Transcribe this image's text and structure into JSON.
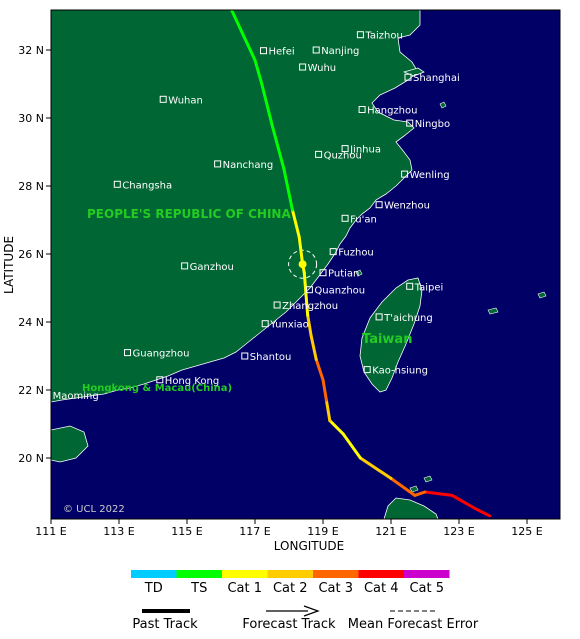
{
  "map": {
    "x_ticks": [
      "111 E",
      "113 E",
      "115 E",
      "117 E",
      "119 E",
      "121 E",
      "123 E",
      "125 E"
    ],
    "y_ticks": [
      "32 N",
      "30 N",
      "28 N",
      "26 N",
      "24 N",
      "22 N",
      "20 N"
    ],
    "x_axis_title": "LONGITUDE",
    "y_axis_title": "LATITUDE",
    "country_china": "PEOPLE'S REPUBLIC OF CHINA",
    "taiwan": "Taiwan",
    "hk_macau": "Hongkong & Macau(China)",
    "copyright": "© UCL 2022",
    "cities": [
      {
        "name": "Taizhou",
        "lon": 120.1,
        "lat": 32.45
      },
      {
        "name": "Hefei",
        "lon": 117.25,
        "lat": 31.98
      },
      {
        "name": "Nanjing",
        "lon": 118.8,
        "lat": 32.0
      },
      {
        "name": "Wuhu",
        "lon": 118.4,
        "lat": 31.5
      },
      {
        "name": "Shanghai",
        "lon": 121.5,
        "lat": 31.2
      },
      {
        "name": "Wuhan",
        "lon": 114.3,
        "lat": 30.55
      },
      {
        "name": "Hangzhou",
        "lon": 120.15,
        "lat": 30.25
      },
      {
        "name": "Ningbo",
        "lon": 121.55,
        "lat": 29.85
      },
      {
        "name": "Jinhua",
        "lon": 119.65,
        "lat": 29.1
      },
      {
        "name": "Quzhou",
        "lon": 118.87,
        "lat": 28.93
      },
      {
        "name": "Nanchang",
        "lon": 115.9,
        "lat": 28.65
      },
      {
        "name": "Wenling",
        "lon": 121.4,
        "lat": 28.35
      },
      {
        "name": "Changsha",
        "lon": 112.95,
        "lat": 28.05
      },
      {
        "name": "Wenzhou",
        "lon": 120.65,
        "lat": 27.45
      },
      {
        "name": "Fu'an",
        "lon": 119.65,
        "lat": 27.05
      },
      {
        "name": "Fuzhou",
        "lon": 119.3,
        "lat": 26.07
      },
      {
        "name": "Putian",
        "lon": 119.0,
        "lat": 25.45
      },
      {
        "name": "Ganzhou",
        "lon": 114.93,
        "lat": 25.65
      },
      {
        "name": "Taipei",
        "lon": 121.55,
        "lat": 25.05
      },
      {
        "name": "Quanzhou",
        "lon": 118.6,
        "lat": 24.95
      },
      {
        "name": "Zhangzhou",
        "lon": 117.65,
        "lat": 24.5
      },
      {
        "name": "T'aichung",
        "lon": 120.65,
        "lat": 24.15
      },
      {
        "name": "Yunxiao",
        "lon": 117.3,
        "lat": 23.95
      },
      {
        "name": "Guangzhou",
        "lon": 113.25,
        "lat": 23.1
      },
      {
        "name": "Shantou",
        "lon": 116.7,
        "lat": 23.0
      },
      {
        "name": "Kao-hsiung",
        "lon": 120.3,
        "lat": 22.6
      },
      {
        "name": "Hong Kong",
        "lon": 114.2,
        "lat": 22.3
      },
      {
        "name": "Maoming",
        "lon": 110.9,
        "lat": 21.85
      }
    ]
  },
  "track": {
    "forecast_points": [
      {
        "lon": 123.9,
        "lat": 18.3,
        "cat": "Cat 4"
      },
      {
        "lon": 123.5,
        "lat": 18.5,
        "cat": "Cat 4"
      },
      {
        "lon": 122.8,
        "lat": 18.9,
        "cat": "Cat 4"
      },
      {
        "lon": 122.0,
        "lat": 19.0,
        "cat": "Cat 4"
      },
      {
        "lon": 121.7,
        "lat": 18.9,
        "cat": "Cat 3"
      },
      {
        "lon": 121.0,
        "lat": 19.4,
        "cat": "Cat 3"
      },
      {
        "lon": 120.1,
        "lat": 20.0,
        "cat": "Cat 2"
      },
      {
        "lon": 119.6,
        "lat": 20.7,
        "cat": "Cat 1"
      },
      {
        "lon": 119.2,
        "lat": 21.1,
        "cat": "Cat 1"
      },
      {
        "lon": 119.1,
        "lat": 21.7,
        "cat": "Cat 2"
      },
      {
        "lon": 119.0,
        "lat": 22.3,
        "cat": "Cat 3"
      },
      {
        "lon": 118.8,
        "lat": 22.9,
        "cat": "Cat 3"
      },
      {
        "lon": 118.65,
        "lat": 23.6,
        "cat": "Cat 2"
      },
      {
        "lon": 118.55,
        "lat": 24.2,
        "cat": "Cat 2"
      },
      {
        "lon": 118.5,
        "lat": 24.8,
        "cat": "Cat 1"
      },
      {
        "lon": 118.45,
        "lat": 25.45,
        "cat": "Cat 1"
      },
      {
        "lon": 118.4,
        "lat": 25.7,
        "cat": "Cat 1"
      },
      {
        "lon": 118.3,
        "lat": 26.5,
        "cat": "Cat 1"
      },
      {
        "lon": 118.1,
        "lat": 27.3,
        "cat": "Cat 1"
      },
      {
        "lon": 117.85,
        "lat": 28.5,
        "cat": "TS"
      },
      {
        "lon": 117.5,
        "lat": 29.8,
        "cat": "TS"
      },
      {
        "lon": 117.2,
        "lat": 31.0,
        "cat": "TS"
      },
      {
        "lon": 117.0,
        "lat": 31.7,
        "cat": "TS"
      },
      {
        "lon": 116.3,
        "lat": 33.2,
        "cat": "TS"
      }
    ],
    "current_position": {
      "lon": 118.4,
      "lat": 25.7
    }
  },
  "legend": {
    "categories": [
      {
        "label": "TD",
        "color": "#00ccff"
      },
      {
        "label": "TS",
        "color": "#00ff00"
      },
      {
        "label": "Cat 1",
        "color": "#ffff00"
      },
      {
        "label": "Cat 2",
        "color": "#ffcc00"
      },
      {
        "label": "Cat 3",
        "color": "#ff6600"
      },
      {
        "label": "Cat 4",
        "color": "#ff0000"
      },
      {
        "label": "Cat 5",
        "color": "#cc00cc"
      }
    ],
    "past_track": "Past Track",
    "forecast_track": "Forecast Track",
    "mean_error": "Mean Forecast Error"
  },
  "colors": {
    "ocean": "#000066",
    "land": "#006633",
    "coast": "#ffffff"
  }
}
